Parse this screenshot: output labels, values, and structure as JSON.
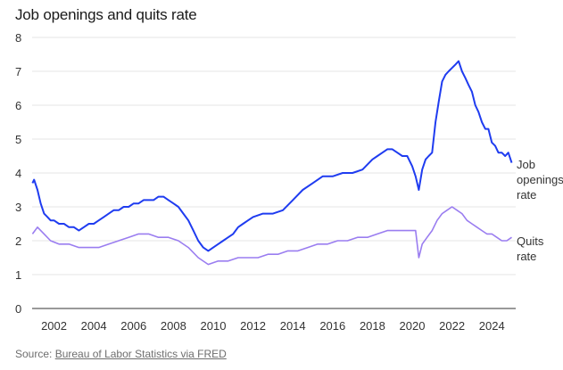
{
  "header": {
    "title": "Job openings and quits rate"
  },
  "footer": {
    "source_prefix": "Source: ",
    "source_link": "Bureau of Labor Statistics via FRED"
  },
  "colors": {
    "job_openings": "#1f3cf0",
    "quits": "#9a7df0",
    "grid": "#e6e6e6"
  },
  "chart_data": {
    "type": "line",
    "title": "Job openings and quits rate",
    "xlabel": "",
    "ylabel": "",
    "xlim": [
      2000.9,
      2025.2
    ],
    "ylim": [
      0,
      8
    ],
    "x_ticks": [
      2002,
      2004,
      2006,
      2008,
      2010,
      2012,
      2014,
      2016,
      2018,
      2020,
      2022,
      2024
    ],
    "y_ticks": [
      0,
      1,
      2,
      3,
      4,
      5,
      6,
      7,
      8
    ],
    "grid": true,
    "legend": "direct labels at line ends (right)",
    "series": [
      {
        "name": "Job openings rate",
        "label_lines": [
          "Job",
          "openings",
          "rate"
        ],
        "x": [
          2000.92,
          2001.0,
          2001.17,
          2001.33,
          2001.5,
          2001.67,
          2001.83,
          2002.0,
          2002.25,
          2002.5,
          2002.75,
          2003.0,
          2003.25,
          2003.5,
          2003.75,
          2004.0,
          2004.25,
          2004.5,
          2004.75,
          2005.0,
          2005.25,
          2005.5,
          2005.75,
          2006.0,
          2006.25,
          2006.5,
          2006.75,
          2007.0,
          2007.25,
          2007.5,
          2007.75,
          2008.0,
          2008.25,
          2008.5,
          2008.75,
          2009.0,
          2009.25,
          2009.5,
          2009.75,
          2010.0,
          2010.25,
          2010.5,
          2010.75,
          2011.0,
          2011.25,
          2011.5,
          2011.75,
          2012.0,
          2012.5,
          2013.0,
          2013.5,
          2014.0,
          2014.5,
          2015.0,
          2015.5,
          2016.0,
          2016.5,
          2017.0,
          2017.5,
          2018.0,
          2018.25,
          2018.5,
          2018.75,
          2019.0,
          2019.25,
          2019.5,
          2019.75,
          2020.0,
          2020.17,
          2020.33,
          2020.5,
          2020.67,
          2020.83,
          2021.0,
          2021.17,
          2021.33,
          2021.5,
          2021.67,
          2021.83,
          2022.0,
          2022.17,
          2022.33,
          2022.5,
          2022.67,
          2022.83,
          2023.0,
          2023.17,
          2023.33,
          2023.5,
          2023.67,
          2023.83,
          2024.0,
          2024.17,
          2024.33,
          2024.5,
          2024.67,
          2024.83,
          2025.0
        ],
        "values": [
          3.7,
          3.8,
          3.5,
          3.1,
          2.8,
          2.7,
          2.6,
          2.6,
          2.5,
          2.5,
          2.4,
          2.4,
          2.3,
          2.4,
          2.5,
          2.5,
          2.6,
          2.7,
          2.8,
          2.9,
          2.9,
          3.0,
          3.0,
          3.1,
          3.1,
          3.2,
          3.2,
          3.2,
          3.3,
          3.3,
          3.2,
          3.1,
          3.0,
          2.8,
          2.6,
          2.3,
          2.0,
          1.8,
          1.7,
          1.8,
          1.9,
          2.0,
          2.1,
          2.2,
          2.4,
          2.5,
          2.6,
          2.7,
          2.8,
          2.8,
          2.9,
          3.2,
          3.5,
          3.7,
          3.9,
          3.9,
          4.0,
          4.0,
          4.1,
          4.4,
          4.5,
          4.6,
          4.7,
          4.7,
          4.6,
          4.5,
          4.5,
          4.2,
          3.9,
          3.5,
          4.1,
          4.4,
          4.5,
          4.6,
          5.5,
          6.1,
          6.7,
          6.9,
          7.0,
          7.1,
          7.2,
          7.3,
          7.0,
          6.8,
          6.6,
          6.4,
          6.0,
          5.8,
          5.5,
          5.3,
          5.3,
          4.9,
          4.8,
          4.6,
          4.6,
          4.5,
          4.6,
          4.3
        ]
      },
      {
        "name": "Quits rate",
        "label_lines": [
          "Quits",
          "rate"
        ],
        "x": [
          2000.92,
          2001.17,
          2001.5,
          2001.83,
          2002.25,
          2002.75,
          2003.25,
          2003.75,
          2004.25,
          2004.75,
          2005.25,
          2005.75,
          2006.25,
          2006.75,
          2007.25,
          2007.75,
          2008.25,
          2008.75,
          2009.25,
          2009.75,
          2010.25,
          2010.75,
          2011.25,
          2011.75,
          2012.25,
          2012.75,
          2013.25,
          2013.75,
          2014.25,
          2014.75,
          2015.25,
          2015.75,
          2016.25,
          2016.75,
          2017.25,
          2017.75,
          2018.25,
          2018.75,
          2019.25,
          2019.75,
          2020.17,
          2020.33,
          2020.5,
          2020.75,
          2021.0,
          2021.25,
          2021.5,
          2021.75,
          2022.0,
          2022.25,
          2022.5,
          2022.75,
          2023.0,
          2023.25,
          2023.5,
          2023.75,
          2024.0,
          2024.25,
          2024.5,
          2024.75,
          2025.0
        ],
        "values": [
          2.2,
          2.4,
          2.2,
          2.0,
          1.9,
          1.9,
          1.8,
          1.8,
          1.8,
          1.9,
          2.0,
          2.1,
          2.2,
          2.2,
          2.1,
          2.1,
          2.0,
          1.8,
          1.5,
          1.3,
          1.4,
          1.4,
          1.5,
          1.5,
          1.5,
          1.6,
          1.6,
          1.7,
          1.7,
          1.8,
          1.9,
          1.9,
          2.0,
          2.0,
          2.1,
          2.1,
          2.2,
          2.3,
          2.3,
          2.3,
          2.3,
          1.5,
          1.9,
          2.1,
          2.3,
          2.6,
          2.8,
          2.9,
          3.0,
          2.9,
          2.8,
          2.6,
          2.5,
          2.4,
          2.3,
          2.2,
          2.2,
          2.1,
          2.0,
          2.0,
          2.1
        ]
      }
    ]
  }
}
